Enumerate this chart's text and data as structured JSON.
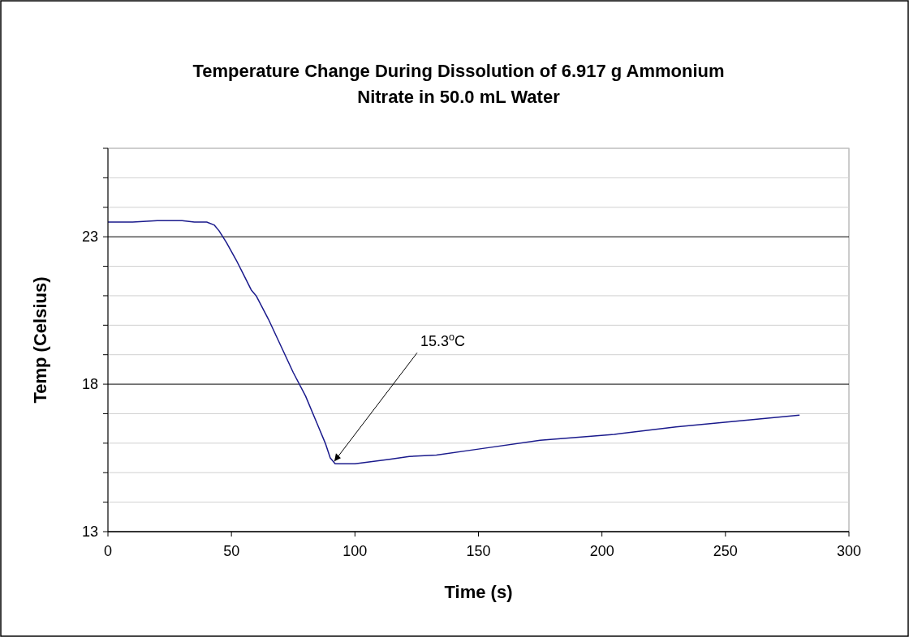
{
  "chart_data": {
    "type": "line",
    "title": "Temperature Change During Dissolution of 6.917 g Ammonium Nitrate in 50.0 mL Water",
    "xlabel": "Time (s)",
    "ylabel": "Temp (Celsius)",
    "x": [
      0,
      10,
      20,
      30,
      35,
      40,
      43,
      45,
      48,
      52,
      55,
      58,
      60,
      65,
      70,
      75,
      80,
      85,
      88,
      90,
      92,
      100,
      114,
      122,
      133,
      150,
      175,
      205,
      230,
      255,
      280
    ],
    "series": [
      {
        "color": "#1a1a8c",
        "values": [
          23.5,
          23.5,
          23.55,
          23.55,
          23.5,
          23.5,
          23.4,
          23.2,
          22.8,
          22.2,
          21.7,
          21.2,
          21,
          20.2,
          19.3,
          18.4,
          17.6,
          16.6,
          16,
          15.5,
          15.3,
          15.3,
          15.45,
          15.55,
          15.6,
          15.8,
          16.1,
          16.3,
          16.55,
          16.75,
          16.95
        ]
      }
    ],
    "xlim": [
      0,
      300
    ],
    "xticks": [
      0,
      50,
      100,
      150,
      200,
      250,
      300
    ],
    "ylim": [
      13,
      26
    ],
    "yticks": [
      13,
      {
        "value": 14,
        "label": null
      },
      {
        "value": 15,
        "label": null
      },
      {
        "value": 16,
        "label": null
      },
      {
        "value": 17,
        "label": null
      },
      18,
      {
        "value": 19,
        "label": null
      },
      {
        "value": 20,
        "label": null
      },
      {
        "value": 21,
        "label": null
      },
      {
        "value": 22,
        "label": null
      },
      23,
      {
        "value": 24,
        "label": null
      },
      {
        "value": 25,
        "label": null
      },
      {
        "value": 26,
        "label": null
      }
    ],
    "grid": "y",
    "marker": "none",
    "line_style": "solid",
    "annotations": [
      {
        "text": "15.3$^{o}$C",
        "x": 91,
        "y": 15.3
      }
    ]
  }
}
